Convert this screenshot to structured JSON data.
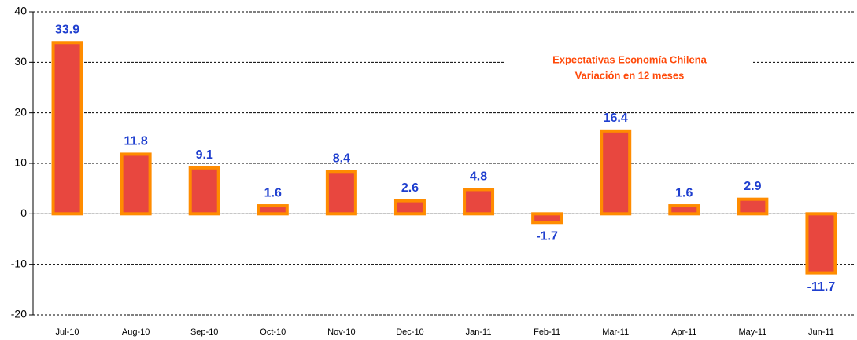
{
  "chart_data": {
    "type": "bar",
    "title": "Expectativas Economía Chilena",
    "subtitle": "Variación en 12 meses",
    "categories": [
      "Jul-10",
      "Aug-10",
      "Sep-10",
      "Oct-10",
      "Nov-10",
      "Dec-10",
      "Jan-11",
      "Feb-11",
      "Mar-11",
      "Apr-11",
      "May-11",
      "Jun-11"
    ],
    "values": [
      33.9,
      11.8,
      9.1,
      1.6,
      8.4,
      2.6,
      4.8,
      -1.7,
      16.4,
      1.6,
      2.9,
      -11.7
    ],
    "color": "#e8473f",
    "edge_color": "#ff8c00",
    "label_color": "#1f3fcf",
    "ylim": [
      -20,
      40
    ],
    "yticks": [
      -20,
      -10,
      0,
      10,
      20,
      30,
      40
    ],
    "grid": true
  }
}
